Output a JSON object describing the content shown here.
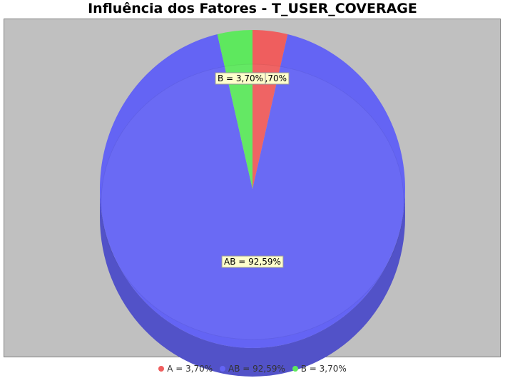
{
  "chart_data": {
    "type": "pie",
    "title": "Influência dos Fatores - T_USER_COVERAGE",
    "slices": [
      {
        "label": "A",
        "value": 3.7,
        "color": "#ef5e5e",
        "label_text": "A = 3,70%",
        "legend_text": "A = 3,70%"
      },
      {
        "label": "AB",
        "value": 92.59,
        "color": "#6464f4",
        "label_text": "AB = 92,59%",
        "legend_text": "AB = 92,59%"
      },
      {
        "label": "B",
        "value": 3.7,
        "color": "#5ee85e",
        "label_text": "B = 3,70%",
        "legend_text": "B = 3,70%"
      }
    ],
    "plot_background": "#c0c0c0",
    "label_background": "#ffffcc",
    "legend_position": "bottom",
    "three_d": true
  }
}
